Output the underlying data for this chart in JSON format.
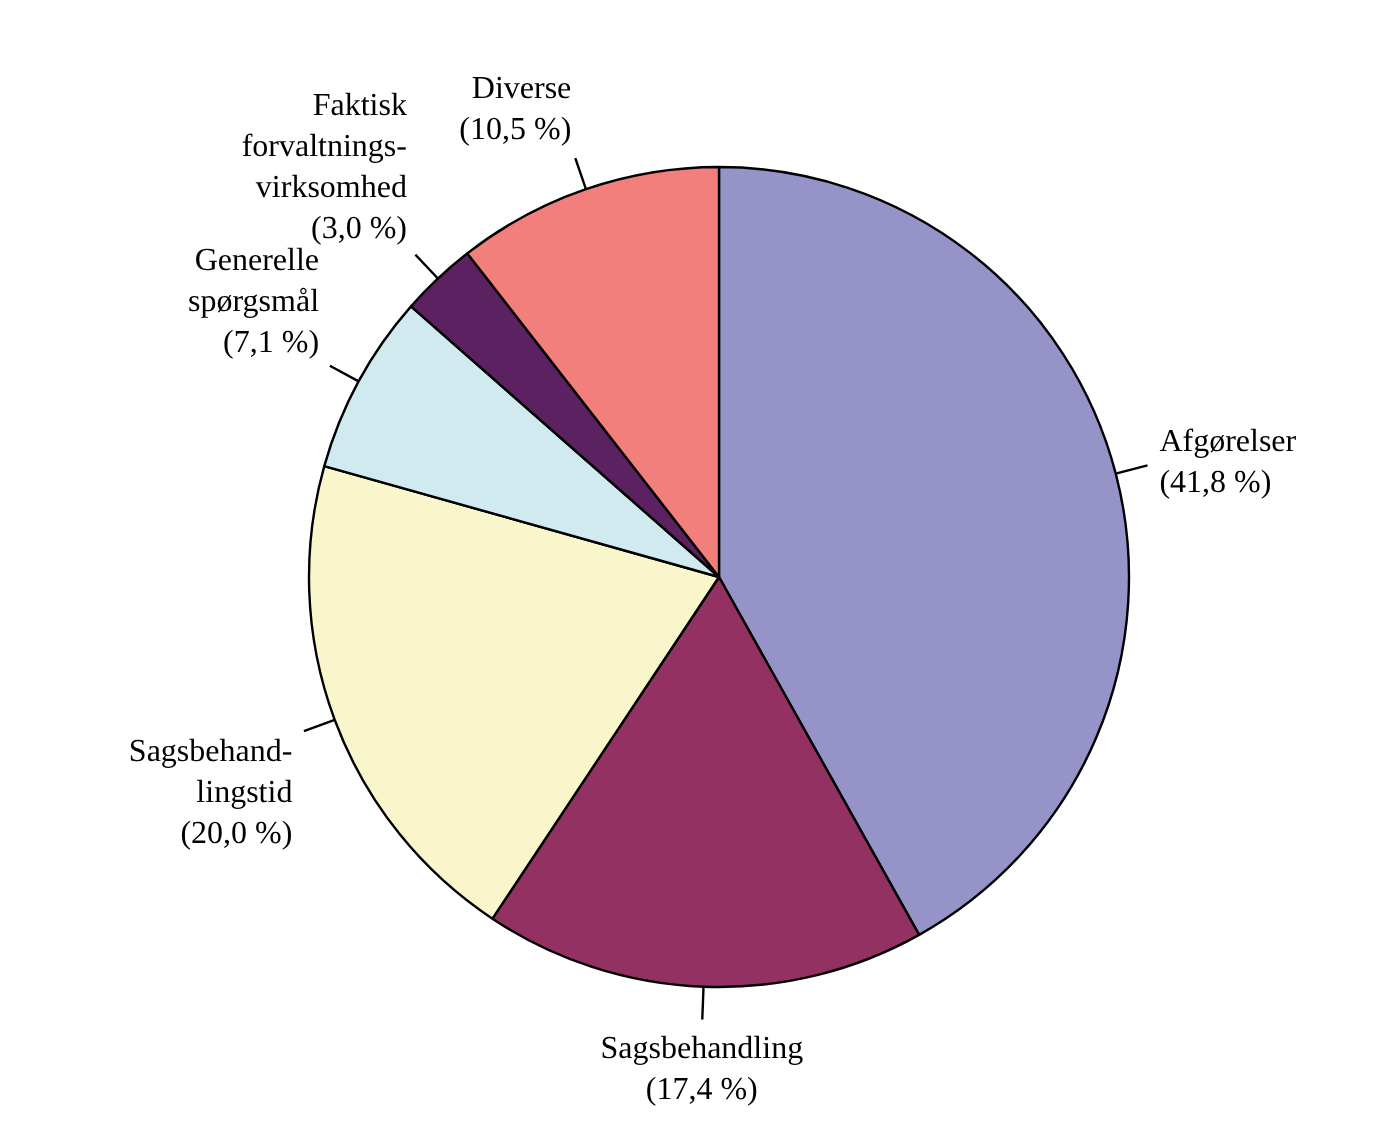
{
  "chart_data": {
    "type": "pie",
    "categories": [
      "Afgørelser",
      "Sagsbehandling",
      "Sagsbehand-\nlingstid",
      "Generelle\nspørgsmål",
      "Faktisk\nforvaltnings-\nvirksomhed",
      "Diverse"
    ],
    "values": [
      41.8,
      17.4,
      20.0,
      7.1,
      3.0,
      10.5
    ],
    "colors": [
      "#9593c7",
      "#933262",
      "#faf6cc",
      "#d0eaf0",
      "#5c2160",
      "#f37f7d"
    ],
    "value_labels": [
      "(41,8 %)",
      "(17,4 %)",
      "(20,0 %)",
      "(7,1 %)",
      "(3,0 %)",
      "(10,5 %)"
    ]
  }
}
